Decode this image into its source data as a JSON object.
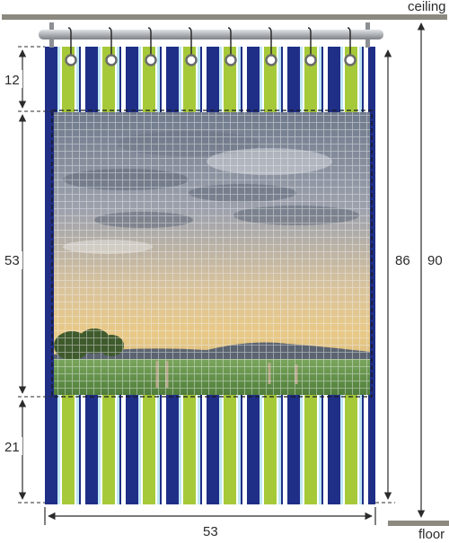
{
  "labels": {
    "ceiling": "ceiling",
    "floor": "floor"
  },
  "dimensions": {
    "top_band": "12",
    "window_height": "53",
    "bottom_band": "21",
    "curtain_width": "53",
    "curtain_length": "86",
    "ceiling_to_floor": "90"
  },
  "colors": {
    "stripe_navy": "#1f2e86",
    "stripe_green": "#a6c93a",
    "stripe_light": "#bfe7f3",
    "stripe_white": "#ffffff",
    "rod": "#b9bcbf",
    "ceiling_floor": "#8c8a80",
    "dimension_line": "#2b2b2b",
    "sky_top": "#6f7a8c",
    "sky_mid": "#a9aab3",
    "sky_glow": "#e6c590",
    "hills": "#5b6470",
    "field": "#6f9d55"
  },
  "icons": [
    "curtain-rod",
    "grommet-ring",
    "window-mesh"
  ]
}
